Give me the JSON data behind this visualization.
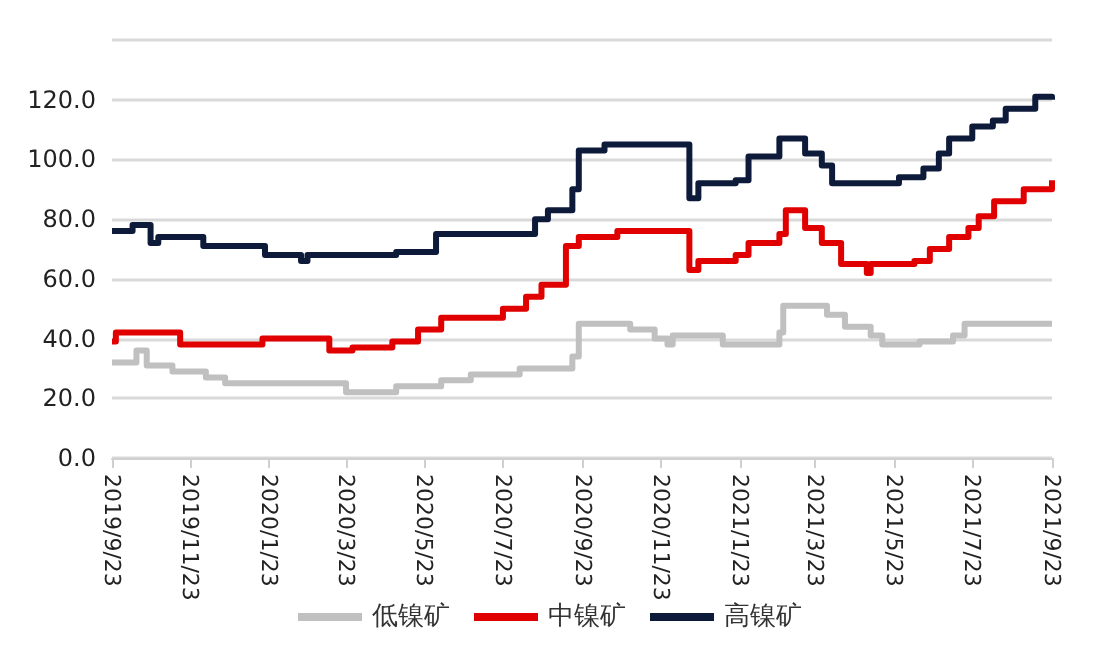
{
  "chart_data": {
    "type": "step",
    "ylim": [
      0,
      140
    ],
    "yticks": [
      {
        "value": 0,
        "label": "0.0"
      },
      {
        "value": 20,
        "label": "20.0"
      },
      {
        "value": 40,
        "label": "40.0"
      },
      {
        "value": 60,
        "label": "60.0"
      },
      {
        "value": 80,
        "label": "80.0"
      },
      {
        "value": 100,
        "label": "100.0"
      },
      {
        "value": 120,
        "label": "120.0"
      },
      {
        "value": 140,
        "label": null
      }
    ],
    "xlim": [
      "2019-09-23",
      "2021-09-23"
    ],
    "xticks": [
      {
        "value": "2019-09-23",
        "label": "2019/9/23"
      },
      {
        "value": "2019-11-23",
        "label": "2019/11/23"
      },
      {
        "value": "2020-01-23",
        "label": "2020/1/23"
      },
      {
        "value": "2020-03-23",
        "label": "2020/3/23"
      },
      {
        "value": "2020-05-23",
        "label": "2020/5/23"
      },
      {
        "value": "2020-07-23",
        "label": "2020/7/23"
      },
      {
        "value": "2020-09-23",
        "label": "2020/9/23"
      },
      {
        "value": "2020-11-23",
        "label": "2020/11/23"
      },
      {
        "value": "2021-01-23",
        "label": "2021/1/23"
      },
      {
        "value": "2021-03-23",
        "label": "2021/3/23"
      },
      {
        "value": "2021-05-23",
        "label": "2021/5/23"
      },
      {
        "value": "2021-07-23",
        "label": "2021/7/23"
      },
      {
        "value": "2021-09-23",
        "label": "2021/9/23"
      }
    ],
    "grid": "y",
    "legend": "bottom",
    "line_style": "solid",
    "marker": "none",
    "series": [
      {
        "name": "低镍矿",
        "color": "#c0c0c0",
        "x": [
          "2019-09-23",
          "2019-10-12",
          "2019-10-20",
          "2019-11-09",
          "2019-12-05",
          "2019-12-20",
          "2020-03-23",
          "2020-05-01",
          "2020-06-05",
          "2020-06-28",
          "2020-08-05",
          "2020-09-15",
          "2020-09-20",
          "2020-10-30",
          "2020-11-18",
          "2020-11-28",
          "2020-12-02",
          "2021-01-10",
          "2021-02-23",
          "2021-02-26",
          "2021-04-01",
          "2021-04-15",
          "2021-05-05",
          "2021-05-14",
          "2021-06-12",
          "2021-07-08",
          "2021-07-17",
          "2021-09-23"
        ],
        "values": [
          32,
          36,
          31,
          29,
          27,
          25,
          22,
          24,
          26,
          28,
          30,
          34,
          45,
          43,
          40,
          38,
          41,
          38,
          42,
          51,
          48,
          44,
          41,
          38,
          39,
          41,
          45,
          45
        ]
      },
      {
        "name": "中镍矿",
        "color": "#e00000",
        "x": [
          "2019-09-23",
          "2019-09-26",
          "2019-11-15",
          "2020-01-18",
          "2020-03-10",
          "2020-03-28",
          "2020-04-28",
          "2020-05-18",
          "2020-06-05",
          "2020-07-23",
          "2020-08-10",
          "2020-08-22",
          "2020-09-10",
          "2020-09-20",
          "2020-10-20",
          "2020-12-15",
          "2020-12-22",
          "2021-01-20",
          "2021-01-30",
          "2021-02-23",
          "2021-02-28",
          "2021-03-15",
          "2021-03-28",
          "2021-04-12",
          "2021-05-02",
          "2021-05-05",
          "2021-06-08",
          "2021-06-20",
          "2021-07-05",
          "2021-07-20",
          "2021-07-28",
          "2021-08-09",
          "2021-09-01",
          "2021-09-23"
        ],
        "values": [
          39,
          42,
          38,
          40,
          36,
          37,
          39,
          43,
          47,
          50,
          54,
          58,
          71,
          74,
          76,
          63,
          66,
          68,
          72,
          75,
          83,
          77,
          72,
          65,
          62,
          65,
          66,
          70,
          74,
          77,
          81,
          86,
          90,
          93
        ]
      },
      {
        "name": "高镍矿",
        "color": "#0d1a3a",
        "x": [
          "2019-09-23",
          "2019-10-09",
          "2019-10-23",
          "2019-10-29",
          "2019-12-03",
          "2020-01-20",
          "2020-02-17",
          "2020-02-22",
          "2020-05-01",
          "2020-06-01",
          "2020-08-17",
          "2020-08-27",
          "2020-09-15",
          "2020-09-20",
          "2020-10-10",
          "2020-12-15",
          "2020-12-22",
          "2021-01-20",
          "2021-01-30",
          "2021-02-23",
          "2021-03-15",
          "2021-03-28",
          "2021-04-05",
          "2021-05-27",
          "2021-06-15",
          "2021-06-27",
          "2021-07-05",
          "2021-07-23",
          "2021-08-08",
          "2021-08-18",
          "2021-09-10",
          "2021-09-23"
        ],
        "values": [
          76,
          78,
          72,
          74,
          71,
          68,
          66,
          68,
          69,
          75,
          80,
          83,
          90,
          103,
          105,
          87,
          92,
          93,
          101,
          107,
          102,
          98,
          92,
          94,
          97,
          102,
          107,
          111,
          113,
          117,
          121,
          120
        ]
      }
    ]
  }
}
